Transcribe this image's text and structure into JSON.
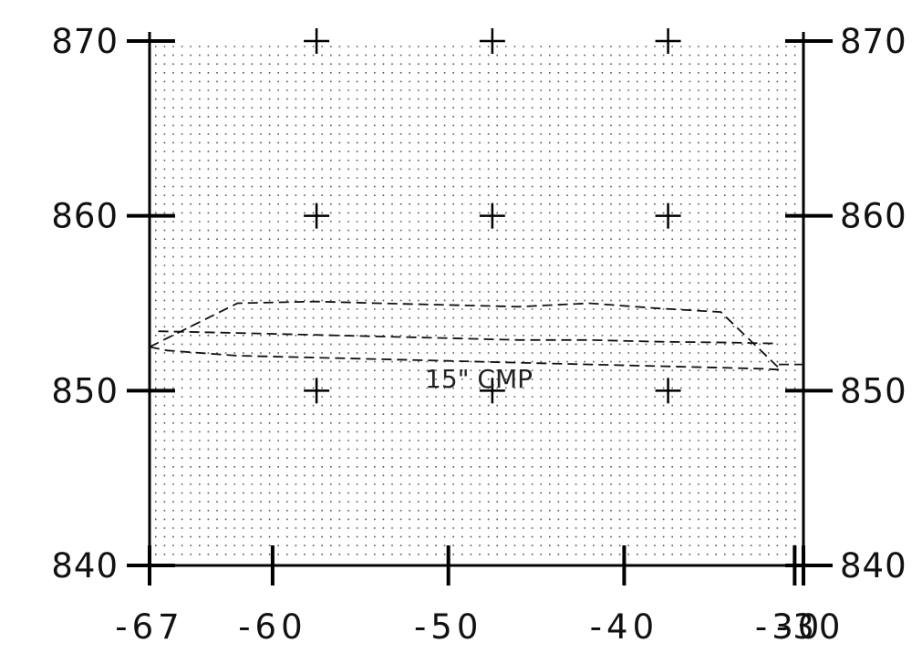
{
  "chart_data": {
    "type": "line",
    "title": "",
    "xlabel": "",
    "ylabel": "",
    "xlim": [
      -67,
      -29.8
    ],
    "ylim": [
      840,
      870
    ],
    "x_ticks": [
      "-67",
      "-60",
      "-50",
      "-40",
      "-30",
      "-30"
    ],
    "y_ticks": [
      "870",
      "860",
      "850",
      "840"
    ],
    "grid": "dotted",
    "annotation": "15\" CMP",
    "series": [
      {
        "x": [
          -67,
          -66,
          -62,
          -58,
          -54,
          -50,
          -46,
          -42,
          -38,
          -34,
          -32,
          -31.2
        ],
        "y": [
          852.5,
          852.3,
          852.0,
          851.9,
          851.8,
          851.7,
          851.6,
          851.5,
          851.4,
          851.3,
          851.25,
          851.2
        ]
      },
      {
        "x": [
          -66.5,
          -62,
          -58,
          -54,
          -50,
          -46,
          -42,
          -38,
          -34,
          -31.5
        ],
        "y": [
          853.4,
          853.3,
          853.2,
          853.1,
          853.0,
          852.9,
          852.9,
          852.8,
          852.75,
          852.7
        ]
      },
      {
        "x": [
          -67,
          -62,
          -57.5,
          -54,
          -50,
          -46,
          -42,
          -38,
          -34.5,
          -31.2
        ],
        "y": [
          852.5,
          855.0,
          855.1,
          855.0,
          854.9,
          854.8,
          855.0,
          854.7,
          854.5,
          851.3
        ]
      },
      {
        "x": [
          -31.2,
          -29.8
        ],
        "y": [
          851.5,
          851.5
        ]
      }
    ]
  }
}
